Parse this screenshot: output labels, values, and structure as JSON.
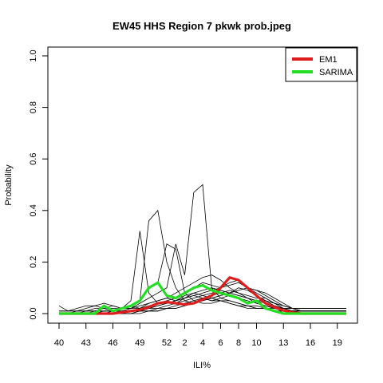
{
  "chart_data": {
    "type": "line",
    "title": "EW45 HHS Region 7 pkwk prob.jpeg",
    "xlabel": "ILI%",
    "ylabel": "Probability",
    "ylim": [
      0,
      1
    ],
    "y_ticks": [
      "0.0",
      "0.2",
      "0.4",
      "0.6",
      "0.8",
      "1.0"
    ],
    "x_ticks": [
      "40",
      "43",
      "46",
      "49",
      "52",
      "2",
      "4",
      "6",
      "8",
      "10",
      "13",
      "16",
      "19"
    ],
    "legend_position": "top-right",
    "legend": [
      {
        "label": "EM1",
        "color": "#dd1c1c"
      },
      {
        "label": "SARIMA",
        "color": "#22dd22"
      }
    ],
    "weeks": [
      "40",
      "41",
      "42",
      "43",
      "44",
      "45",
      "46",
      "47",
      "48",
      "49",
      "50",
      "51",
      "52",
      "1",
      "2",
      "3",
      "4",
      "5",
      "6",
      "7",
      "8",
      "9",
      "10",
      "11",
      "12",
      "13",
      "14",
      "15",
      "16",
      "17",
      "18",
      "19",
      "20"
    ],
    "series": [
      {
        "name": "EM1",
        "color": "#dd1c1c",
        "values": [
          0,
          0,
          0,
          0,
          0,
          0,
          0,
          0.005,
          0.01,
          0.015,
          0.025,
          0.04,
          0.045,
          0.04,
          0.035,
          0.04,
          0.055,
          0.07,
          0.1,
          0.14,
          0.13,
          0.1,
          0.07,
          0.04,
          0.025,
          0.012,
          0.005,
          0,
          0,
          0,
          0,
          0,
          0
        ]
      },
      {
        "name": "SARIMA",
        "color": "#22dd22",
        "values": [
          0,
          0,
          0,
          0,
          0,
          0.03,
          0.01,
          0.02,
          0.03,
          0.05,
          0.1,
          0.12,
          0.07,
          0.06,
          0.08,
          0.1,
          0.11,
          0.09,
          0.08,
          0.07,
          0.06,
          0.04,
          0.05,
          0.02,
          0.01,
          0,
          0,
          0,
          0,
          0,
          0,
          0,
          0
        ]
      }
    ],
    "background_series": [
      [
        0.03,
        0.01,
        0.01,
        0.02,
        0.03,
        0.02,
        0.01,
        0.02,
        0.03,
        0.02,
        0.04,
        0.05,
        0.06,
        0.05,
        0.07,
        0.08,
        0.09,
        0.1,
        0.09,
        0.08,
        0.07,
        0.06,
        0.05,
        0.04,
        0.03,
        0.02,
        0.02,
        0.02,
        0.02,
        0.02,
        0.02,
        0.02,
        0.02
      ],
      [
        0.01,
        0.01,
        0.02,
        0.03,
        0.03,
        0.04,
        0.03,
        0.02,
        0.05,
        0.32,
        0.08,
        0.04,
        0.05,
        0.04,
        0.06,
        0.08,
        0.07,
        0.06,
        0.05,
        0.05,
        0.04,
        0.03,
        0.03,
        0.02,
        0.02,
        0.01,
        0.01,
        0.01,
        0.01,
        0.01,
        0.01,
        0.01,
        0.01
      ],
      [
        0,
        0,
        0.01,
        0.01,
        0.02,
        0.02,
        0.03,
        0.02,
        0.03,
        0.05,
        0.36,
        0.4,
        0.2,
        0.1,
        0.05,
        0.04,
        0.06,
        0.05,
        0.05,
        0.04,
        0.03,
        0.03,
        0.02,
        0.02,
        0.01,
        0.01,
        0.01,
        0.01,
        0.01,
        0.01,
        0.01,
        0.01,
        0.01
      ],
      [
        0,
        0,
        0,
        0.01,
        0.01,
        0.02,
        0.02,
        0.02,
        0.03,
        0.05,
        0.1,
        0.12,
        0.27,
        0.25,
        0.08,
        0.05,
        0.04,
        0.04,
        0.05,
        0.04,
        0.03,
        0.02,
        0.02,
        0.02,
        0.01,
        0.01,
        0.01,
        0.01,
        0.01,
        0.01,
        0.01,
        0.01,
        0.01
      ],
      [
        0,
        0,
        0,
        0,
        0.01,
        0.01,
        0.01,
        0.02,
        0.02,
        0.04,
        0.06,
        0.08,
        0.1,
        0.27,
        0.15,
        0.47,
        0.5,
        0.1,
        0.06,
        0.05,
        0.04,
        0.03,
        0.02,
        0.02,
        0.01,
        0.01,
        0.01,
        0.01,
        0.01,
        0.01,
        0.01,
        0.01,
        0.01
      ],
      [
        0,
        0,
        0,
        0,
        0,
        0.01,
        0.01,
        0.02,
        0.02,
        0.03,
        0.04,
        0.05,
        0.06,
        0.08,
        0.1,
        0.12,
        0.14,
        0.15,
        0.13,
        0.1,
        0.08,
        0.06,
        0.04,
        0.03,
        0.02,
        0.02,
        0.02,
        0.02,
        0.02,
        0.02,
        0.02,
        0.02,
        0.02
      ],
      [
        0,
        0,
        0,
        0,
        0,
        0,
        0.01,
        0.01,
        0.02,
        0.02,
        0.03,
        0.04,
        0.05,
        0.06,
        0.08,
        0.1,
        0.12,
        0.11,
        0.1,
        0.12,
        0.13,
        0.1,
        0.08,
        0.06,
        0.04,
        0.03,
        0.02,
        0.01,
        0.01,
        0.01,
        0.01,
        0.01,
        0.01
      ],
      [
        0,
        0,
        0,
        0,
        0,
        0,
        0,
        0.01,
        0.01,
        0.02,
        0.02,
        0.03,
        0.04,
        0.05,
        0.06,
        0.07,
        0.08,
        0.09,
        0.1,
        0.11,
        0.12,
        0.1,
        0.09,
        0.08,
        0.06,
        0.04,
        0.02,
        0.01,
        0.01,
        0.01,
        0.01,
        0.01,
        0.01
      ],
      [
        0,
        0,
        0,
        0,
        0,
        0,
        0,
        0,
        0.01,
        0.01,
        0.02,
        0.02,
        0.03,
        0.04,
        0.05,
        0.06,
        0.07,
        0.08,
        0.09,
        0.08,
        0.1,
        0.09,
        0.07,
        0.05,
        0.03,
        0.02,
        0.01,
        0.01,
        0.01,
        0.01,
        0.01,
        0.01,
        0.01
      ],
      [
        0,
        0,
        0,
        0,
        0,
        0,
        0,
        0,
        0,
        0.01,
        0.01,
        0.02,
        0.02,
        0.03,
        0.04,
        0.05,
        0.06,
        0.07,
        0.08,
        0.09,
        0.08,
        0.07,
        0.06,
        0.06,
        0.04,
        0.02,
        0.01,
        0.01,
        0.01,
        0.01,
        0.01,
        0.01,
        0.01
      ],
      [
        0,
        0,
        0,
        0,
        0,
        0,
        0,
        0,
        0,
        0,
        0.01,
        0.01,
        0.02,
        0.02,
        0.03,
        0.04,
        0.05,
        0.06,
        0.07,
        0.08,
        0.09,
        0.1,
        0.09,
        0.07,
        0.05,
        0.03,
        0.02,
        0.01,
        0.01,
        0.01,
        0.01,
        0.01,
        0.01
      ],
      [
        0,
        0,
        0,
        0,
        0,
        0,
        0,
        0,
        0,
        0.01,
        0.02,
        0.03,
        0.04,
        0.05,
        0.06,
        0.07,
        0.06,
        0.05,
        0.06,
        0.07,
        0.06,
        0.05,
        0.04,
        0.03,
        0.02,
        0.02,
        0.02,
        0.02,
        0.02,
        0.02,
        0.02,
        0.02,
        0.02
      ],
      [
        0.01,
        0.01,
        0.01,
        0.01,
        0.01,
        0.01,
        0.01,
        0.01,
        0.01,
        0.01,
        0.01,
        0.01,
        0.02,
        0.02,
        0.03,
        0.04,
        0.05,
        0.06,
        0.07,
        0.08,
        0.07,
        0.06,
        0.05,
        0.05,
        0.04,
        0.03,
        0.02,
        0.02,
        0.02,
        0.02,
        0.02,
        0.02,
        0.02
      ]
    ]
  }
}
